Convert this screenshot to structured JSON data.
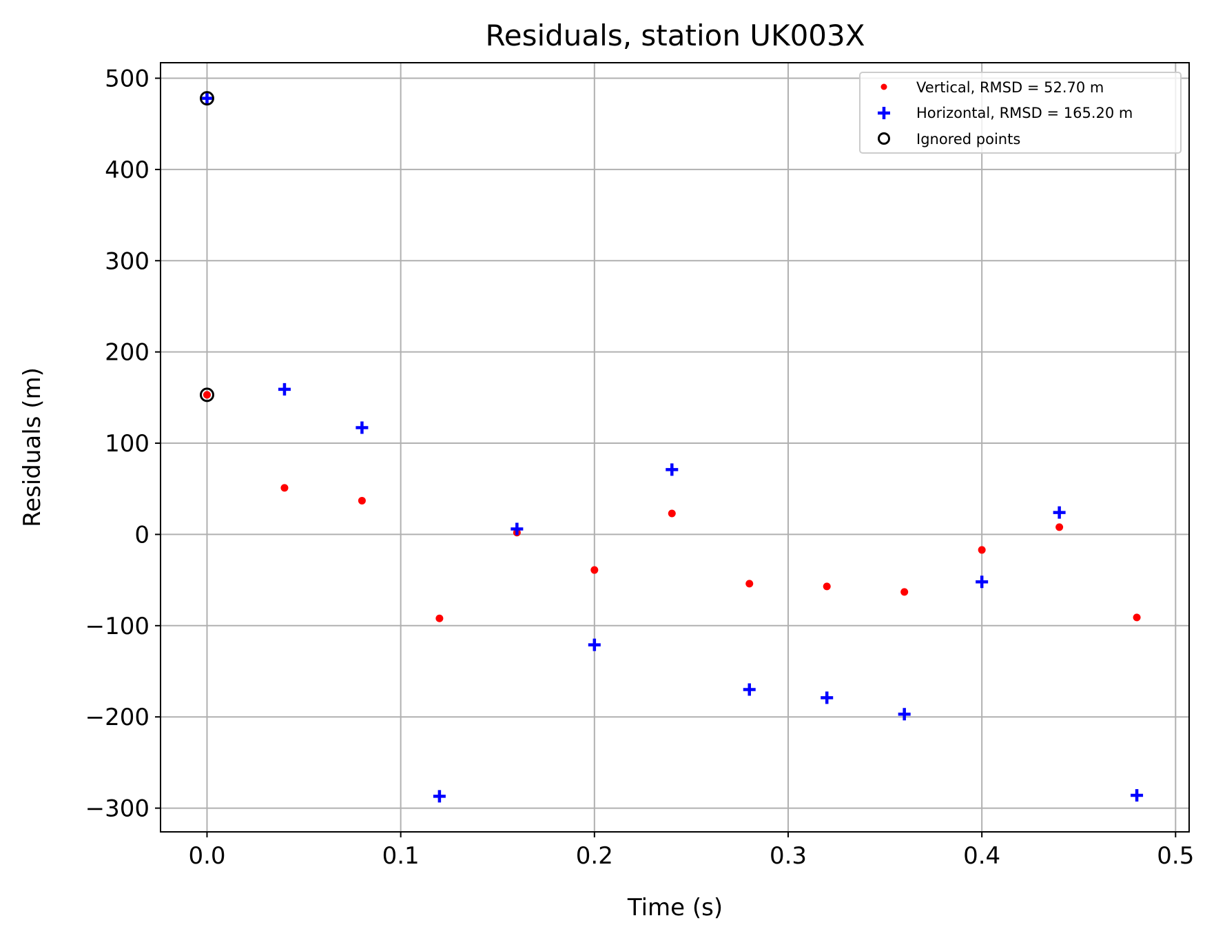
{
  "chart_data": {
    "type": "scatter",
    "title": "Residuals, station UK003X",
    "xlabel": "Time (s)",
    "ylabel": "Residuals (m)",
    "xlim": [
      -0.024,
      0.507
    ],
    "ylim": [
      -326,
      517
    ],
    "xticks": [
      0.0,
      0.1,
      0.2,
      0.3,
      0.4,
      0.5
    ],
    "xtick_labels": [
      "0.0",
      "0.1",
      "0.2",
      "0.3",
      "0.4",
      "0.5"
    ],
    "yticks": [
      -300,
      -200,
      -100,
      0,
      100,
      200,
      300,
      400,
      500
    ],
    "ytick_labels": [
      "−300",
      "−200",
      "−100",
      "0",
      "100",
      "200",
      "300",
      "400",
      "500"
    ],
    "grid": true,
    "legend_position": "top-right",
    "series": [
      {
        "name": "Vertical, RMSD = 52.70 m",
        "marker": "dot",
        "color": "#ff0000",
        "x": [
          0.0,
          0.04,
          0.08,
          0.12,
          0.16,
          0.2,
          0.24,
          0.28,
          0.32,
          0.36,
          0.4,
          0.44,
          0.48
        ],
        "y": [
          153,
          51,
          37,
          -92,
          2,
          -39,
          23,
          -54,
          -57,
          -63,
          -17,
          8,
          -91
        ]
      },
      {
        "name": "Horizontal, RMSD = 165.20 m",
        "marker": "plus",
        "color": "#0000ff",
        "x": [
          0.0,
          0.04,
          0.08,
          0.12,
          0.16,
          0.2,
          0.24,
          0.28,
          0.32,
          0.36,
          0.4,
          0.44,
          0.48
        ],
        "y": [
          478,
          159,
          117,
          -287,
          6,
          -121,
          71,
          -170,
          -179,
          -197,
          -52,
          24,
          -286
        ]
      },
      {
        "name": "Ignored points",
        "marker": "open-circle",
        "color": "#000000",
        "x": [
          0.0,
          0.0
        ],
        "y": [
          478,
          153
        ]
      }
    ]
  }
}
